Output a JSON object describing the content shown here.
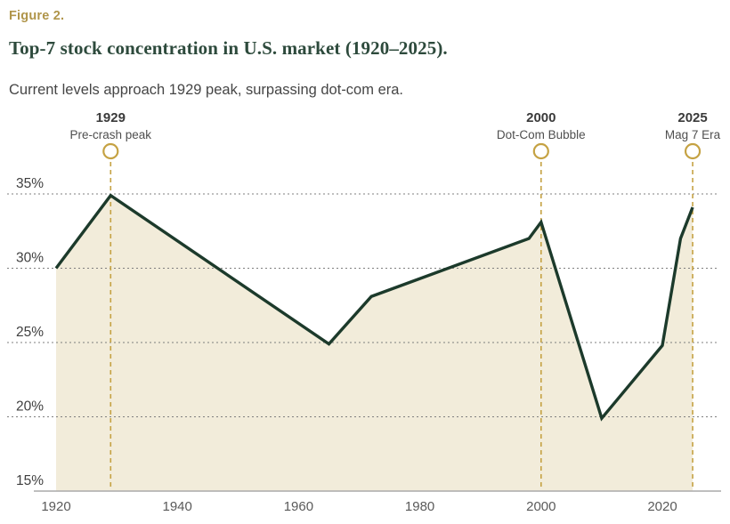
{
  "figure_label": "Figure 2.",
  "title": "Top-7 stock concentration in U.S. market (1920–2025).",
  "subtitle": "Current levels approach 1929 peak, surpassing dot-com era.",
  "colors": {
    "figure_label_gold": "#b0954a",
    "title_green": "#2d4a3c",
    "subtitle_gray": "#464646",
    "accent_gold": "#c5a243",
    "line_green": "#1c3a2b",
    "fill_beige": "#f2ecda",
    "grid_gray": "#7f7f7f",
    "axis_gray": "#aaaaaa",
    "tick_label_dark": "#3f3f3f",
    "tick_label_mid": "#5a5a5a",
    "annotation_dark": "#3a3a3a",
    "annotation_mid": "#4f4f4f"
  },
  "chart_data": {
    "type": "area",
    "title": "Top-7 stock concentration in U.S. market (1920–2025).",
    "subtitle": "Current levels approach 1929 peak, surpassing dot-com era.",
    "x": [
      1920,
      1929,
      1965,
      1972,
      1998,
      2000,
      2010,
      2020,
      2023,
      2025
    ],
    "values": [
      30.0,
      34.9,
      24.9,
      28.1,
      32.0,
      33.1,
      19.9,
      24.8,
      32.0,
      34.1
    ],
    "unit": "%",
    "y_ticks": [
      35,
      30,
      25,
      20,
      15
    ],
    "y_tick_labels": [
      "35%",
      "30%",
      "25%",
      "20%",
      "15%"
    ],
    "x_ticks": [
      1920,
      1940,
      1960,
      1980,
      2000,
      2020
    ],
    "x_tick_labels": [
      "1920",
      "1940",
      "1960",
      "1980",
      "2000",
      "2020"
    ],
    "xlim": [
      1920,
      2025
    ],
    "ylim": [
      15,
      37
    ],
    "grid": "horizontal-dashed",
    "legend": "none",
    "annotations": [
      {
        "year": 1929,
        "label": "1929",
        "sublabel": "Pre-crash peak"
      },
      {
        "year": 2000,
        "label": "2000",
        "sublabel": "Dot-Com Bubble"
      },
      {
        "year": 2025,
        "label": "2025",
        "sublabel": "Mag 7 Era"
      }
    ]
  }
}
